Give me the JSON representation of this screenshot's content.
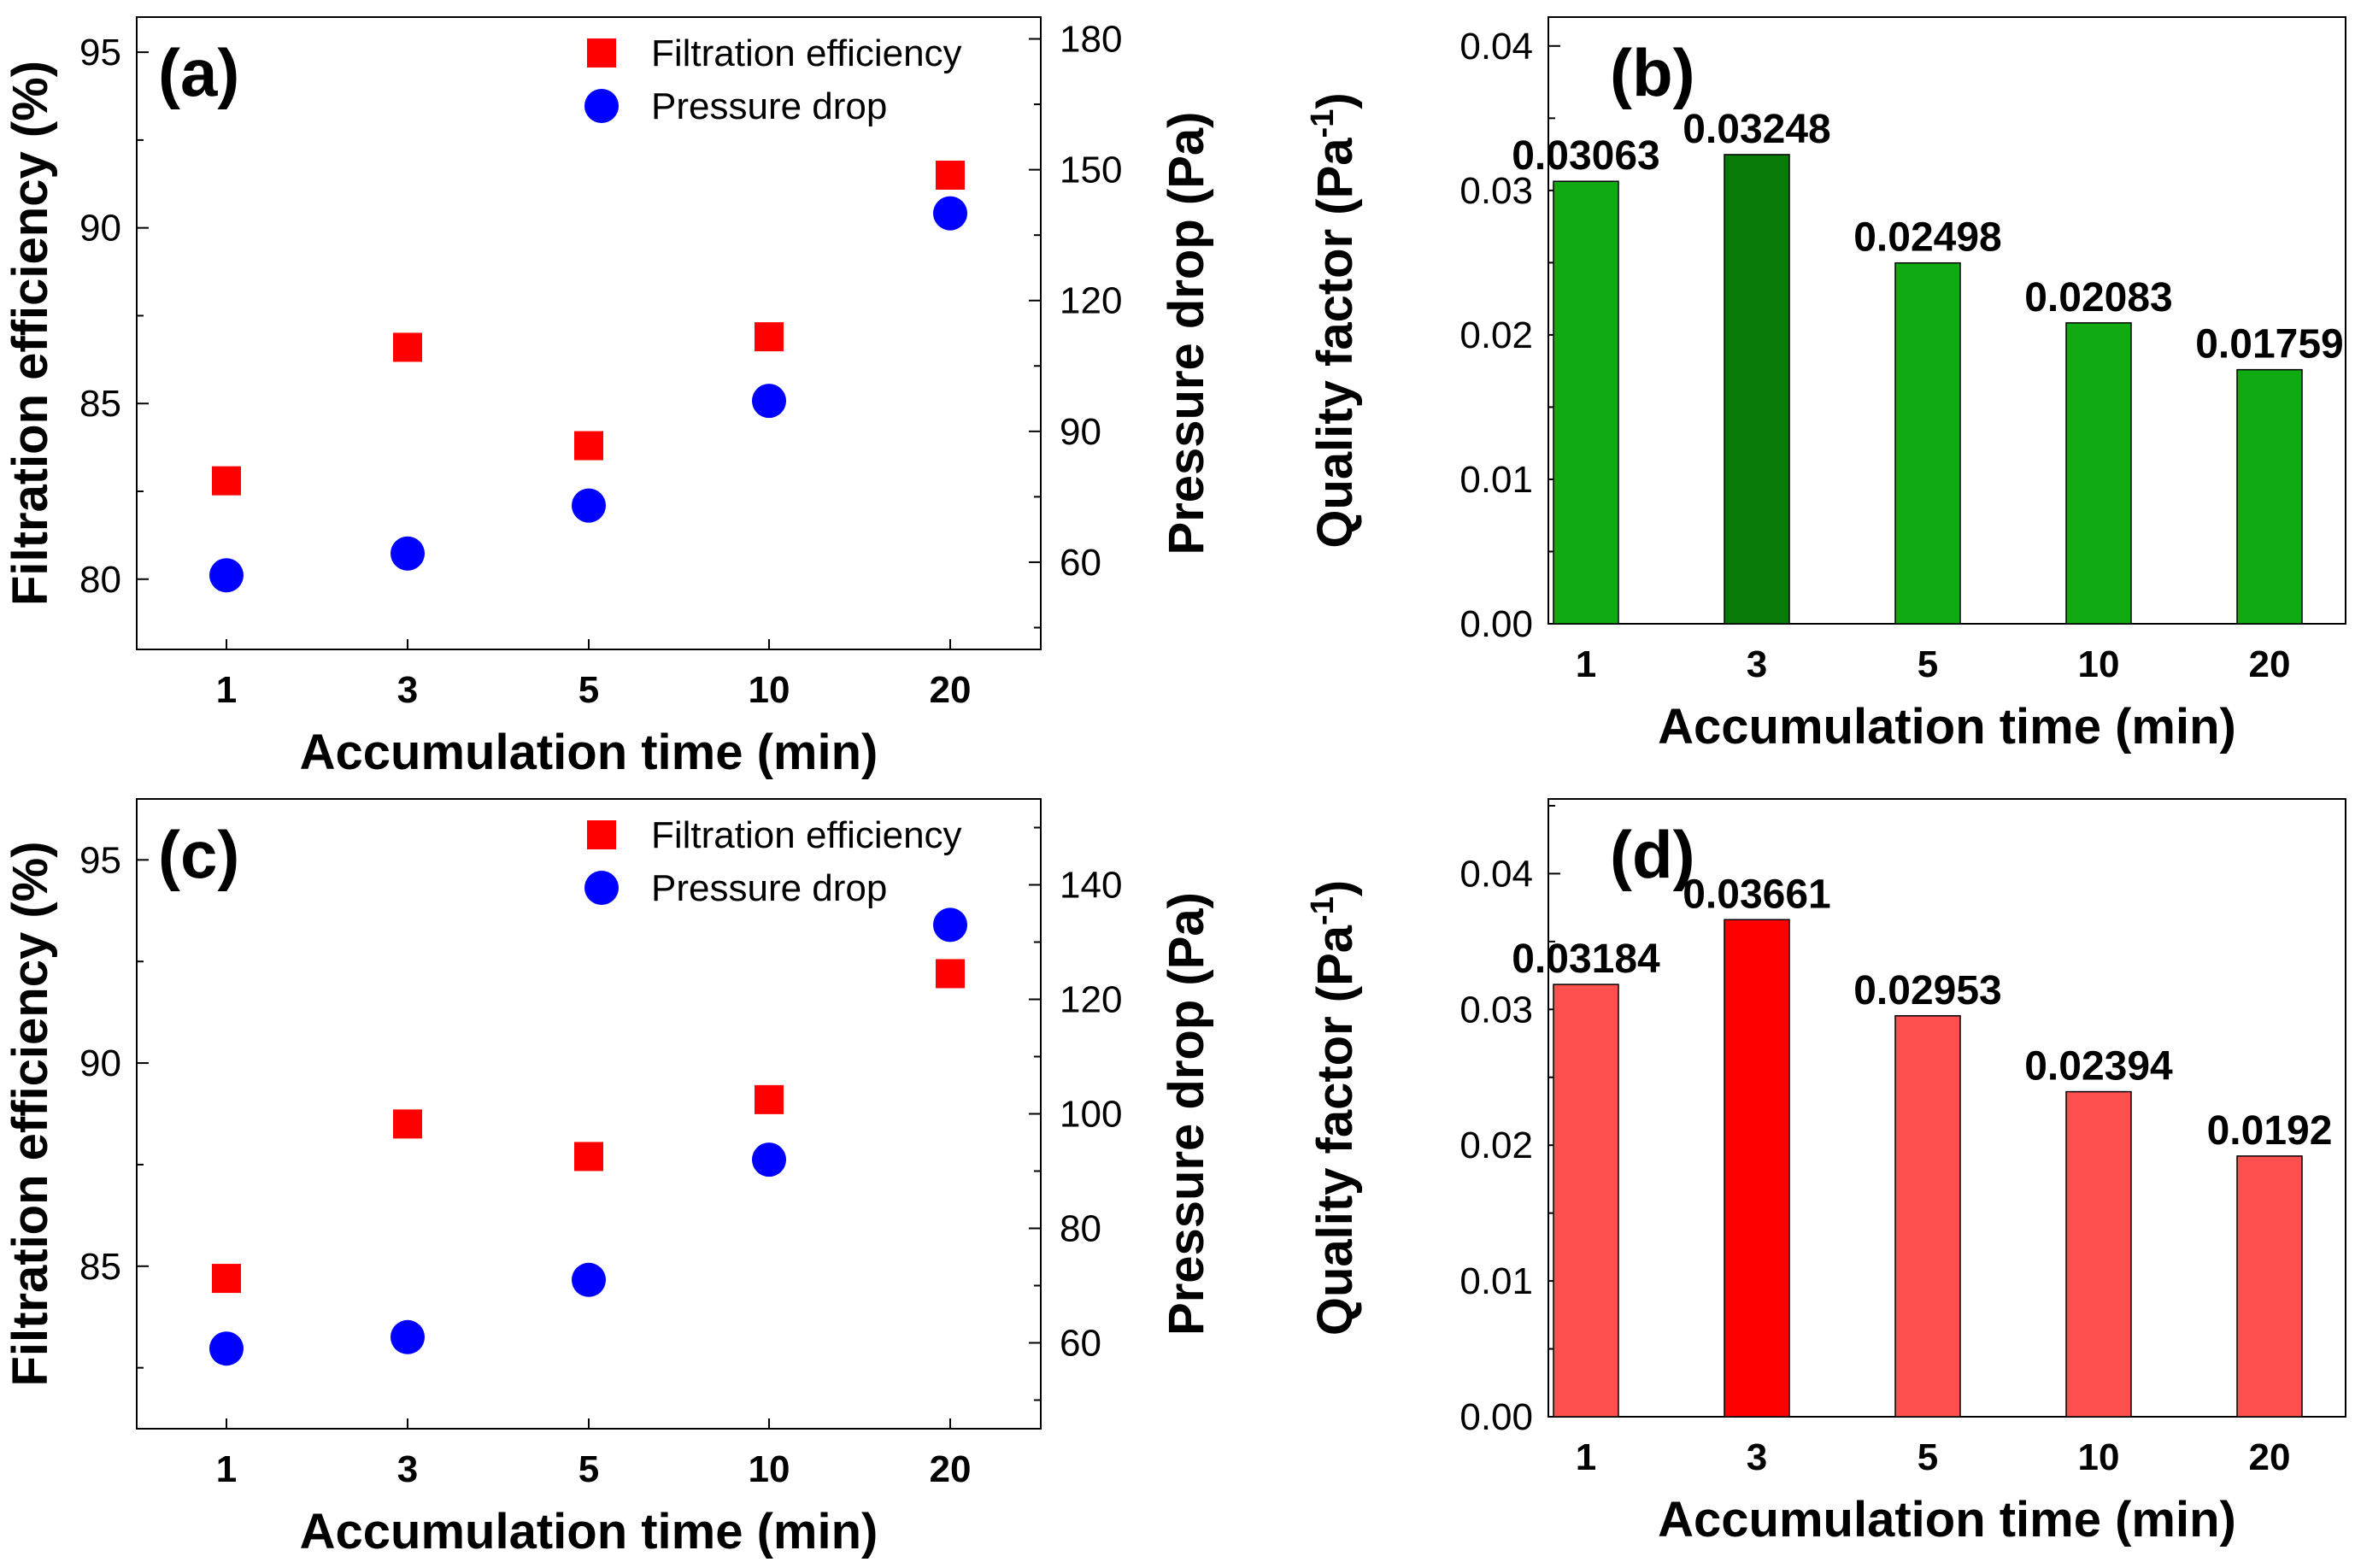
{
  "charts": [
    {
      "id": "a",
      "type": "scatter",
      "panel_label": "(a)",
      "xlabel": "Accumulation time (min)",
      "ylabel_left": "Filtration efficiency (%)",
      "ylabel_right": "Pressure drop (Pa)",
      "categories": [
        "1",
        "3",
        "5",
        "10",
        "20"
      ],
      "ylim_left": [
        78.0,
        96.0
      ],
      "ylim_right": [
        40,
        185
      ],
      "yticks_left": [
        80,
        85,
        90,
        95
      ],
      "yticks_right": [
        60,
        90,
        120,
        150,
        180
      ],
      "legend": [
        {
          "name": "Filtration efficiency",
          "color": "#ff0000",
          "marker": "square"
        },
        {
          "name": "Pressure drop",
          "color": "#0000ff",
          "marker": "circle"
        }
      ],
      "series": [
        {
          "name": "Filtration efficiency",
          "axis": "left",
          "values": [
            82.8,
            86.6,
            83.8,
            86.9,
            91.5
          ]
        },
        {
          "name": "Pressure drop",
          "axis": "right",
          "values": [
            57,
            62,
            73,
            97,
            140
          ]
        }
      ]
    },
    {
      "id": "b",
      "type": "bar",
      "panel_label": "(b)",
      "xlabel": "Accumulation time (min)",
      "ylabel": "Quality factor (Pa",
      "ylabel_sup": "-1",
      "ylabel_end": ")",
      "categories": [
        "1",
        "3",
        "5",
        "10",
        "20"
      ],
      "ylim": [
        0,
        0.042
      ],
      "yticks": [
        "0.00",
        "0.01",
        "0.02",
        "0.03",
        "0.04"
      ],
      "values": [
        0.03063,
        0.03248,
        0.02498,
        0.02083,
        0.01759
      ],
      "data_labels": [
        "0.03063",
        "0.03248",
        "0.02498",
        "0.02083",
        "0.01759"
      ],
      "colors": [
        "#12aa12",
        "#077a07",
        "#12aa12",
        "#12aa12",
        "#12aa12"
      ]
    },
    {
      "id": "c",
      "type": "scatter",
      "panel_label": "(c)",
      "xlabel": "Accumulation time (min)",
      "ylabel_left": "Filtration efficiency (%)",
      "ylabel_right": "Pressure drop (Pa)",
      "categories": [
        "1",
        "3",
        "5",
        "10",
        "20"
      ],
      "ylim_left": [
        81.0,
        96.5
      ],
      "ylim_right": [
        45,
        155
      ],
      "yticks_left": [
        85,
        90,
        95
      ],
      "yticks_right": [
        60,
        80,
        100,
        120,
        140
      ],
      "legend": [
        {
          "name": "Filtration efficiency",
          "color": "#ff0000",
          "marker": "square"
        },
        {
          "name": "Pressure drop",
          "color": "#0000ff",
          "marker": "circle"
        }
      ],
      "series": [
        {
          "name": "Filtration efficiency",
          "axis": "left",
          "values": [
            84.7,
            88.5,
            87.7,
            89.1,
            92.2
          ]
        },
        {
          "name": "Pressure drop",
          "axis": "right",
          "values": [
            59,
            61,
            71,
            92,
            133
          ]
        }
      ]
    },
    {
      "id": "d",
      "type": "bar",
      "panel_label": "(d)",
      "xlabel": "Accumulation time (min)",
      "ylabel": "Quality factor (Pa",
      "ylabel_sup": "-1",
      "ylabel_end": ")",
      "categories": [
        "1",
        "3",
        "5",
        "10",
        "20"
      ],
      "ylim": [
        0,
        0.0455
      ],
      "yticks": [
        "0.00",
        "0.01",
        "0.02",
        "0.03",
        "0.04"
      ],
      "values": [
        0.03184,
        0.03661,
        0.02953,
        0.02394,
        0.0192
      ],
      "data_labels": [
        "0.03184",
        "0.03661",
        "0.02953",
        "0.02394",
        "0.0192"
      ],
      "colors": [
        "#ff5050",
        "#ff0000",
        "#ff5050",
        "#ff5050",
        "#ff5050"
      ]
    }
  ]
}
